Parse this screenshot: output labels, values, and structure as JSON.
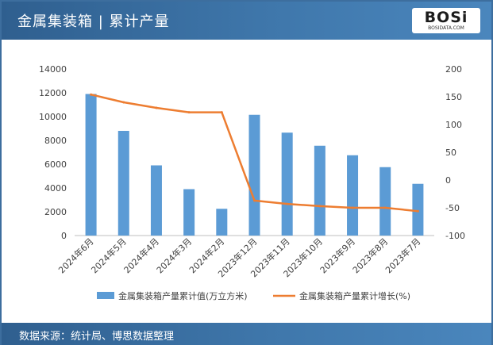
{
  "header": {
    "title": "金属集装箱 | 累计产量",
    "logo_text": "BOSi",
    "logo_sub": "BOSIDATA.COM"
  },
  "footer": {
    "source": "数据来源：统计局、博思数据整理"
  },
  "colors": {
    "bar": "#5b9bd5",
    "line": "#ed7d31",
    "header_bg": "#3a6fa3"
  },
  "chart_data": {
    "type": "bar",
    "categories": [
      "2024年6月",
      "2024年5月",
      "2024年4月",
      "2024年3月",
      "2024年2月",
      "2023年12月",
      "2023年11月",
      "2023年10月",
      "2023年9月",
      "2023年8月",
      "2023年7月"
    ],
    "series": [
      {
        "name": "金属集装箱产量累计值(万立方米)",
        "type": "bar",
        "axis": "left",
        "values": [
          11900,
          8800,
          5900,
          3900,
          2250,
          10150,
          8650,
          7550,
          6750,
          5750,
          4350
        ]
      },
      {
        "name": "金属集装箱产量累计增长(%)",
        "type": "line",
        "axis": "right",
        "values": [
          154,
          140,
          130,
          122,
          122,
          -37,
          -43,
          -47,
          -50,
          -50,
          -56
        ]
      }
    ],
    "y_left": {
      "min": 0,
      "max": 14000,
      "ticks": [
        "0",
        "2000",
        "4000",
        "6000",
        "8000",
        "10000",
        "12000",
        "14000"
      ]
    },
    "y_right": {
      "min": -100,
      "max": 200,
      "ticks": [
        "-100",
        "-50",
        "0",
        "50",
        "100",
        "150",
        "200"
      ]
    },
    "legend_position": "bottom",
    "grid": false
  }
}
